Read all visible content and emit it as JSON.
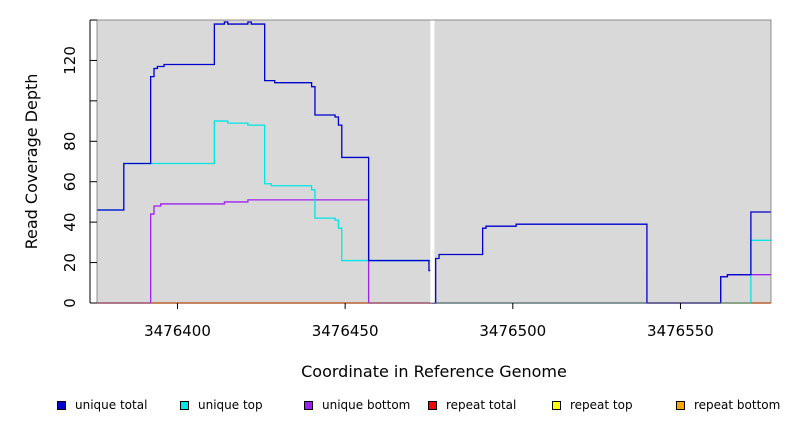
{
  "chart_data": {
    "type": "line",
    "xlabel": "Coordinate in Reference Genome",
    "ylabel": "Read Coverage Depth",
    "xlim": [
      3476376,
      3476577
    ],
    "ylim": [
      0,
      140
    ],
    "x_ticks": [
      3476400,
      3476450,
      3476500,
      3476550
    ],
    "y_ticks": [
      0,
      20,
      40,
      60,
      80,
      120
    ],
    "y_minor_ticks": [
      100,
      140
    ],
    "plot_background": "#d9d9d9",
    "gap_marker_x": 3476476,
    "series": [
      {
        "name": "unique total",
        "color": "#0000cc",
        "steps": [
          [
            3476376,
            46
          ],
          [
            3476384,
            69
          ],
          [
            3476392,
            112
          ],
          [
            3476393,
            116
          ],
          [
            3476394,
            117
          ],
          [
            3476396,
            118
          ],
          [
            3476411,
            138
          ],
          [
            3476414,
            139
          ],
          [
            3476415,
            138
          ],
          [
            3476421,
            139
          ],
          [
            3476422,
            138
          ],
          [
            3476426,
            110
          ],
          [
            3476429,
            109
          ],
          [
            3476440,
            107
          ],
          [
            3476441,
            93
          ],
          [
            3476447,
            92
          ],
          [
            3476448,
            88
          ],
          [
            3476449,
            72
          ],
          [
            3476457,
            21
          ],
          [
            3476475,
            16
          ],
          [
            3476476,
            0
          ],
          [
            3476477,
            22
          ],
          [
            3476478,
            24
          ],
          [
            3476491,
            37
          ],
          [
            3476492,
            38
          ],
          [
            3476501,
            39
          ],
          [
            3476540,
            0
          ],
          [
            3476562,
            13
          ],
          [
            3476564,
            14
          ],
          [
            3476571,
            45
          ],
          [
            3476577,
            45
          ]
        ]
      },
      {
        "name": "unique top",
        "color": "#00e5e5",
        "steps": [
          [
            3476376,
            46
          ],
          [
            3476384,
            69
          ],
          [
            3476411,
            90
          ],
          [
            3476415,
            89
          ],
          [
            3476421,
            88
          ],
          [
            3476426,
            59
          ],
          [
            3476428,
            58
          ],
          [
            3476440,
            56
          ],
          [
            3476441,
            42
          ],
          [
            3476447,
            41
          ],
          [
            3476448,
            37
          ],
          [
            3476449,
            21
          ],
          [
            3476476,
            0
          ],
          [
            3476571,
            31
          ],
          [
            3476577,
            31
          ]
        ]
      },
      {
        "name": "unique bottom",
        "color": "#a020f0",
        "steps": [
          [
            3476376,
            0
          ],
          [
            3476392,
            44
          ],
          [
            3476393,
            48
          ],
          [
            3476395,
            49
          ],
          [
            3476414,
            50
          ],
          [
            3476421,
            51
          ],
          [
            3476457,
            0
          ],
          [
            3476562,
            13
          ],
          [
            3476564,
            14
          ],
          [
            3476577,
            14
          ]
        ]
      },
      {
        "name": "repeat total",
        "color": "#ff0000",
        "steps": [
          [
            3476376,
            0
          ],
          [
            3476577,
            0
          ]
        ]
      },
      {
        "name": "repeat top",
        "color": "#ffff00",
        "steps": [
          [
            3476376,
            0
          ],
          [
            3476577,
            0
          ]
        ]
      },
      {
        "name": "repeat bottom",
        "color": "#ffa500",
        "steps": [
          [
            3476376,
            0
          ],
          [
            3476577,
            0
          ]
        ]
      }
    ],
    "legend_position": "bottom"
  }
}
